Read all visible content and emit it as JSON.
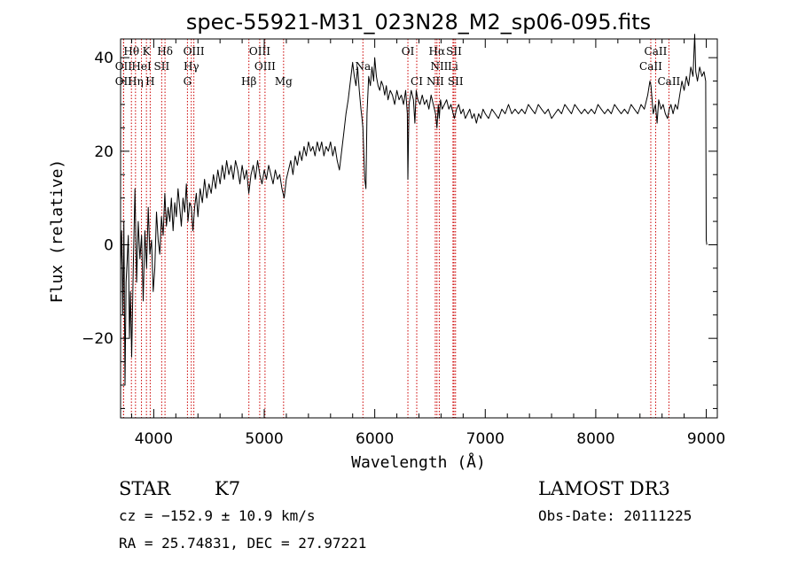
{
  "chart_data": {
    "type": "line",
    "title": "spec-55921-M31_023N28_M2_sp06-095.fits",
    "xlabel": "Wavelength (Å)",
    "ylabel": "Flux (relative)",
    "xlim": [
      3700,
      9100
    ],
    "ylim": [
      -37,
      44
    ],
    "xticks": [
      4000,
      5000,
      6000,
      7000,
      8000,
      9000
    ],
    "xtick_labels": [
      "4000",
      "5000",
      "6000",
      "7000",
      "8000",
      "9000"
    ],
    "yticks": [
      -20,
      0,
      20,
      40
    ],
    "ytick_labels": [
      "−20",
      "0",
      "20",
      "40"
    ],
    "series": [
      {
        "name": "flux",
        "points": [
          [
            3700,
            -5
          ],
          [
            3710,
            3
          ],
          [
            3720,
            -15
          ],
          [
            3730,
            5
          ],
          [
            3740,
            -30
          ],
          [
            3750,
            -8
          ],
          [
            3760,
            -3
          ],
          [
            3770,
            2
          ],
          [
            3780,
            -20
          ],
          [
            3790,
            -10
          ],
          [
            3800,
            -24
          ],
          [
            3815,
            -5
          ],
          [
            3830,
            12
          ],
          [
            3845,
            -8
          ],
          [
            3860,
            5
          ],
          [
            3875,
            -3
          ],
          [
            3890,
            2
          ],
          [
            3905,
            -12
          ],
          [
            3920,
            3
          ],
          [
            3935,
            -5
          ],
          [
            3950,
            8
          ],
          [
            3965,
            -2
          ],
          [
            3980,
            1
          ],
          [
            3995,
            -10
          ],
          [
            4010,
            -5
          ],
          [
            4025,
            7
          ],
          [
            4040,
            1
          ],
          [
            4055,
            -2
          ],
          [
            4070,
            6
          ],
          [
            4085,
            2
          ],
          [
            4100,
            11
          ],
          [
            4115,
            4
          ],
          [
            4130,
            8
          ],
          [
            4145,
            5
          ],
          [
            4160,
            10
          ],
          [
            4175,
            3
          ],
          [
            4190,
            9
          ],
          [
            4205,
            6
          ],
          [
            4220,
            12
          ],
          [
            4235,
            8
          ],
          [
            4250,
            4
          ],
          [
            4265,
            10
          ],
          [
            4280,
            7
          ],
          [
            4295,
            13
          ],
          [
            4310,
            5
          ],
          [
            4325,
            9
          ],
          [
            4340,
            8
          ],
          [
            4355,
            3
          ],
          [
            4370,
            8
          ],
          [
            4385,
            11
          ],
          [
            4400,
            6
          ],
          [
            4420,
            12
          ],
          [
            4440,
            9
          ],
          [
            4460,
            14
          ],
          [
            4480,
            10
          ],
          [
            4500,
            13
          ],
          [
            4520,
            11
          ],
          [
            4540,
            15
          ],
          [
            4560,
            12
          ],
          [
            4580,
            16
          ],
          [
            4600,
            13
          ],
          [
            4620,
            17
          ],
          [
            4640,
            14
          ],
          [
            4660,
            18
          ],
          [
            4680,
            15
          ],
          [
            4700,
            17
          ],
          [
            4720,
            14
          ],
          [
            4740,
            18
          ],
          [
            4760,
            16
          ],
          [
            4780,
            13
          ],
          [
            4800,
            17
          ],
          [
            4820,
            14
          ],
          [
            4840,
            16
          ],
          [
            4860,
            11
          ],
          [
            4880,
            15
          ],
          [
            4900,
            17
          ],
          [
            4920,
            14
          ],
          [
            4940,
            18
          ],
          [
            4960,
            15
          ],
          [
            4980,
            13
          ],
          [
            5000,
            16
          ],
          [
            5020,
            14
          ],
          [
            5040,
            17
          ],
          [
            5060,
            15
          ],
          [
            5080,
            13
          ],
          [
            5100,
            16
          ],
          [
            5120,
            14
          ],
          [
            5140,
            15
          ],
          [
            5160,
            12
          ],
          [
            5180,
            10
          ],
          [
            5200,
            14
          ],
          [
            5220,
            16
          ],
          [
            5240,
            18
          ],
          [
            5260,
            15
          ],
          [
            5280,
            19
          ],
          [
            5300,
            17
          ],
          [
            5320,
            20
          ],
          [
            5340,
            18
          ],
          [
            5360,
            21
          ],
          [
            5380,
            19
          ],
          [
            5400,
            22
          ],
          [
            5420,
            20
          ],
          [
            5440,
            21
          ],
          [
            5460,
            19
          ],
          [
            5480,
            22
          ],
          [
            5500,
            20
          ],
          [
            5520,
            22
          ],
          [
            5540,
            19
          ],
          [
            5560,
            21
          ],
          [
            5580,
            20
          ],
          [
            5600,
            22
          ],
          [
            5620,
            19
          ],
          [
            5640,
            21
          ],
          [
            5660,
            18
          ],
          [
            5680,
            16
          ],
          [
            5700,
            20
          ],
          [
            5720,
            24
          ],
          [
            5740,
            28
          ],
          [
            5760,
            31
          ],
          [
            5780,
            35
          ],
          [
            5800,
            39
          ],
          [
            5815,
            36
          ],
          [
            5830,
            34
          ],
          [
            5845,
            38
          ],
          [
            5860,
            33
          ],
          [
            5875,
            29
          ],
          [
            5885,
            27
          ],
          [
            5893,
            25
          ],
          [
            5900,
            20
          ],
          [
            5910,
            14
          ],
          [
            5920,
            12
          ],
          [
            5930,
            28
          ],
          [
            5945,
            36
          ],
          [
            5960,
            34
          ],
          [
            5975,
            38
          ],
          [
            5990,
            35
          ],
          [
            6000,
            40
          ],
          [
            6015,
            36
          ],
          [
            6030,
            34
          ],
          [
            6045,
            33
          ],
          [
            6060,
            35
          ],
          [
            6075,
            34
          ],
          [
            6090,
            32
          ],
          [
            6105,
            34
          ],
          [
            6120,
            31
          ],
          [
            6140,
            33
          ],
          [
            6160,
            32
          ],
          [
            6180,
            30
          ],
          [
            6200,
            33
          ],
          [
            6220,
            31
          ],
          [
            6240,
            32
          ],
          [
            6260,
            30
          ],
          [
            6280,
            33
          ],
          [
            6295,
            28
          ],
          [
            6300,
            14
          ],
          [
            6310,
            30
          ],
          [
            6330,
            33
          ],
          [
            6350,
            31
          ],
          [
            6363,
            26
          ],
          [
            6375,
            33
          ],
          [
            6390,
            31
          ],
          [
            6410,
            30
          ],
          [
            6430,
            32
          ],
          [
            6450,
            30
          ],
          [
            6470,
            31
          ],
          [
            6490,
            29
          ],
          [
            6510,
            32
          ],
          [
            6530,
            30
          ],
          [
            6550,
            28
          ],
          [
            6563,
            25
          ],
          [
            6575,
            30
          ],
          [
            6584,
            27
          ],
          [
            6595,
            31
          ],
          [
            6610,
            29
          ],
          [
            6630,
            30
          ],
          [
            6650,
            31
          ],
          [
            6670,
            29
          ],
          [
            6690,
            30
          ],
          [
            6710,
            28
          ],
          [
            6720,
            27
          ],
          [
            6740,
            29
          ],
          [
            6760,
            30
          ],
          [
            6780,
            28
          ],
          [
            6800,
            29
          ],
          [
            6820,
            27
          ],
          [
            6840,
            28
          ],
          [
            6860,
            29
          ],
          [
            6880,
            27
          ],
          [
            6900,
            28
          ],
          [
            6920,
            26
          ],
          [
            6940,
            28
          ],
          [
            6960,
            27
          ],
          [
            6980,
            29
          ],
          [
            7000,
            28
          ],
          [
            7030,
            27
          ],
          [
            7060,
            29
          ],
          [
            7090,
            28
          ],
          [
            7120,
            27
          ],
          [
            7150,
            29
          ],
          [
            7180,
            28
          ],
          [
            7210,
            30
          ],
          [
            7240,
            28
          ],
          [
            7270,
            29
          ],
          [
            7300,
            28
          ],
          [
            7330,
            29
          ],
          [
            7360,
            28
          ],
          [
            7390,
            30
          ],
          [
            7420,
            29
          ],
          [
            7450,
            28
          ],
          [
            7480,
            30
          ],
          [
            7510,
            29
          ],
          [
            7540,
            28
          ],
          [
            7570,
            29
          ],
          [
            7600,
            27
          ],
          [
            7630,
            28
          ],
          [
            7660,
            29
          ],
          [
            7690,
            28
          ],
          [
            7720,
            30
          ],
          [
            7750,
            29
          ],
          [
            7780,
            28
          ],
          [
            7810,
            30
          ],
          [
            7840,
            29
          ],
          [
            7870,
            28
          ],
          [
            7900,
            29
          ],
          [
            7930,
            28
          ],
          [
            7960,
            29
          ],
          [
            7990,
            28
          ],
          [
            8020,
            30
          ],
          [
            8050,
            29
          ],
          [
            8080,
            28
          ],
          [
            8110,
            29
          ],
          [
            8140,
            28
          ],
          [
            8170,
            30
          ],
          [
            8200,
            29
          ],
          [
            8230,
            28
          ],
          [
            8260,
            29
          ],
          [
            8290,
            28
          ],
          [
            8320,
            30
          ],
          [
            8350,
            29
          ],
          [
            8380,
            28
          ],
          [
            8410,
            30
          ],
          [
            8440,
            29
          ],
          [
            8470,
            32
          ],
          [
            8490,
            35
          ],
          [
            8500,
            34
          ],
          [
            8520,
            28
          ],
          [
            8540,
            30
          ],
          [
            8555,
            26
          ],
          [
            8570,
            31
          ],
          [
            8590,
            29
          ],
          [
            8610,
            30
          ],
          [
            8630,
            28
          ],
          [
            8650,
            27
          ],
          [
            8665,
            29
          ],
          [
            8680,
            30
          ],
          [
            8700,
            28
          ],
          [
            8720,
            30
          ],
          [
            8740,
            29
          ],
          [
            8760,
            32
          ],
          [
            8780,
            35
          ],
          [
            8800,
            33
          ],
          [
            8820,
            36
          ],
          [
            8840,
            34
          ],
          [
            8860,
            38
          ],
          [
            8880,
            36
          ],
          [
            8895,
            45
          ],
          [
            8905,
            37
          ],
          [
            8920,
            35
          ],
          [
            8940,
            38
          ],
          [
            8960,
            36
          ],
          [
            8980,
            37
          ],
          [
            8995,
            35
          ],
          [
            9000,
            1
          ],
          [
            9005,
            0
          ]
        ]
      }
    ],
    "line_markers": [
      {
        "label": "Hθ",
        "wavelength": 3798,
        "row": 1
      },
      {
        "label": "K",
        "wavelength": 3934,
        "row": 1
      },
      {
        "label": "Hδ",
        "wavelength": 4102,
        "row": 1
      },
      {
        "label": "OIII",
        "wavelength": 4363,
        "row": 1
      },
      {
        "label": "OIII",
        "wavelength": 4959,
        "row": 1
      },
      {
        "label": "OI",
        "wavelength": 6300,
        "row": 1
      },
      {
        "label": "Hα",
        "wavelength": 6563,
        "row": 1
      },
      {
        "label": "SII",
        "wavelength": 6717,
        "row": 1
      },
      {
        "label": "CaII",
        "wavelength": 8542,
        "row": 1
      },
      {
        "label": "OII",
        "wavelength": 3727,
        "row": 2
      },
      {
        "label": "HeI",
        "wavelength": 3889,
        "row": 2
      },
      {
        "label": "SII",
        "wavelength": 4072,
        "row": 2
      },
      {
        "label": "Hγ",
        "wavelength": 4340,
        "row": 2
      },
      {
        "label": "OIII",
        "wavelength": 5007,
        "row": 2
      },
      {
        "label": "Na",
        "wavelength": 5893,
        "row": 2
      },
      {
        "label": "NII",
        "wavelength": 6584,
        "row": 2
      },
      {
        "label": "Li",
        "wavelength": 6708,
        "row": 2
      },
      {
        "label": "CaII",
        "wavelength": 8498,
        "row": 2
      },
      {
        "label": "OII",
        "wavelength": 3727,
        "row": 3
      },
      {
        "label": "Hη",
        "wavelength": 3835,
        "row": 3
      },
      {
        "label": "H",
        "wavelength": 3968,
        "row": 3
      },
      {
        "label": "G",
        "wavelength": 4305,
        "row": 3
      },
      {
        "label": "Hβ",
        "wavelength": 4861,
        "row": 3
      },
      {
        "label": "Mg",
        "wavelength": 5175,
        "row": 3
      },
      {
        "label": "CI",
        "wavelength": 6380,
        "row": 3
      },
      {
        "label": "NII",
        "wavelength": 6548,
        "row": 3
      },
      {
        "label": "SII",
        "wavelength": 6731,
        "row": 3
      },
      {
        "label": "CaII",
        "wavelength": 8662,
        "row": 3
      }
    ],
    "marker_color": "#cc0000"
  },
  "info": {
    "class_label": "STAR",
    "subclass": "K7",
    "survey": "LAMOST DR3",
    "cz": "cz = −152.9 ± 10.9 km/s",
    "obs_date": "Obs-Date: 20111225",
    "coords": "RA =  25.74831, DEC =  27.97221"
  }
}
